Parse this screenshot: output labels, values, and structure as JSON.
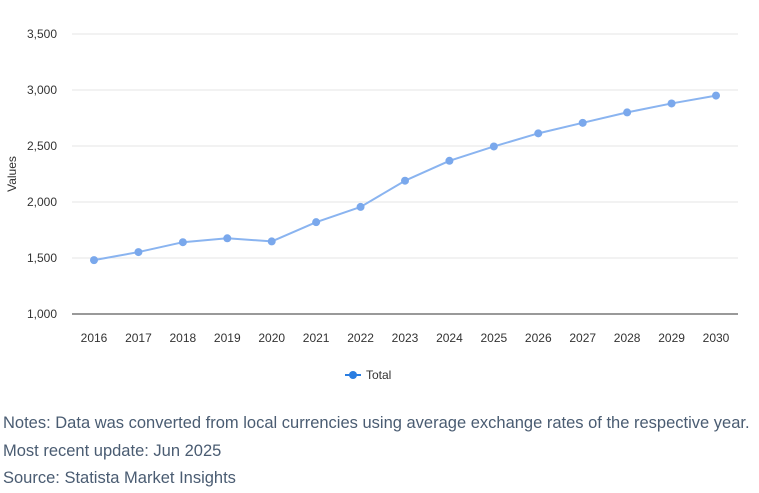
{
  "chart_data": {
    "type": "line",
    "x": [
      "2016",
      "2017",
      "2018",
      "2019",
      "2020",
      "2021",
      "2022",
      "2023",
      "2024",
      "2025",
      "2026",
      "2027",
      "2028",
      "2029",
      "2030"
    ],
    "series": [
      {
        "name": "Total",
        "values": [
          1481,
          1553,
          1641,
          1676,
          1648,
          1820,
          1956,
          2190,
          2368,
          2496,
          2613,
          2707,
          2800,
          2880,
          2950
        ]
      }
    ],
    "ylabel": "Values",
    "xlabel": "",
    "ylim": [
      1000,
      3500
    ],
    "yticks": [
      1000,
      1500,
      2000,
      2500,
      3000,
      3500
    ],
    "ytick_labels": [
      "1,000",
      "1,500",
      "2,000",
      "2,500",
      "3,000",
      "3,500"
    ],
    "grid": true,
    "legend_position": "bottom-center",
    "line_color": "#8ab4f0",
    "marker_color": "#7aa8ec",
    "legend_marker_color": "#2a7de1"
  },
  "notes": {
    "line1": "Notes: Data was converted from local currencies using average exchange rates of the respective year.",
    "line2": "Most recent update: Jun 2025",
    "line3": "Source: Statista Market Insights"
  }
}
